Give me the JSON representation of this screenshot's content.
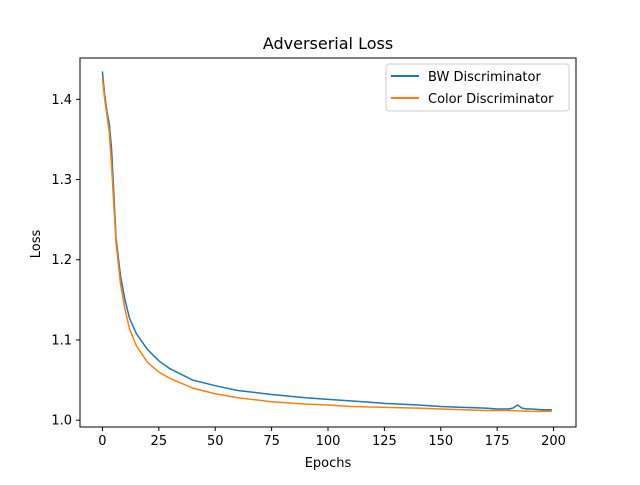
{
  "chart_data": {
    "type": "line",
    "title": "Adverserial Loss",
    "xlabel": "Epochs",
    "ylabel": "Loss",
    "xlim": [
      -9.95,
      209.95
    ],
    "ylim": [
      0.9915,
      1.4515
    ],
    "xticks": [
      0,
      25,
      50,
      75,
      100,
      125,
      150,
      175,
      200
    ],
    "yticks": [
      1.0,
      1.1,
      1.2,
      1.3,
      1.4
    ],
    "ytick_labels": [
      "1.0",
      "1.1",
      "1.2",
      "1.3",
      "1.4"
    ],
    "grid": false,
    "legend_position": "top-right",
    "series": [
      {
        "name": "BW Discriminator",
        "color": "#1f77b4",
        "x": [
          0,
          1,
          2,
          3,
          4,
          5,
          6,
          8,
          10,
          12,
          15,
          20,
          25,
          30,
          40,
          50,
          60,
          75,
          90,
          100,
          110,
          125,
          140,
          150,
          160,
          170,
          175,
          180,
          182,
          184,
          186,
          188,
          190,
          195,
          199
        ],
        "y": [
          1.434,
          1.405,
          1.385,
          1.37,
          1.34,
          1.285,
          1.228,
          1.18,
          1.15,
          1.127,
          1.108,
          1.088,
          1.074,
          1.064,
          1.05,
          1.043,
          1.037,
          1.032,
          1.028,
          1.026,
          1.024,
          1.021,
          1.019,
          1.017,
          1.016,
          1.015,
          1.014,
          1.014,
          1.015,
          1.019,
          1.015,
          1.014,
          1.014,
          1.013,
          1.013
        ]
      },
      {
        "name": "Color Discriminator",
        "color": "#ff7f0e",
        "x": [
          0,
          1,
          2,
          3,
          4,
          5,
          6,
          8,
          10,
          12,
          15,
          20,
          25,
          30,
          40,
          50,
          60,
          75,
          90,
          100,
          110,
          125,
          140,
          150,
          160,
          170,
          175,
          180,
          190,
          199
        ],
        "y": [
          1.426,
          1.4,
          1.38,
          1.36,
          1.32,
          1.27,
          1.222,
          1.17,
          1.138,
          1.114,
          1.093,
          1.072,
          1.06,
          1.052,
          1.04,
          1.033,
          1.028,
          1.023,
          1.02,
          1.019,
          1.017,
          1.016,
          1.015,
          1.014,
          1.013,
          1.012,
          1.012,
          1.012,
          1.011,
          1.011
        ]
      }
    ]
  }
}
